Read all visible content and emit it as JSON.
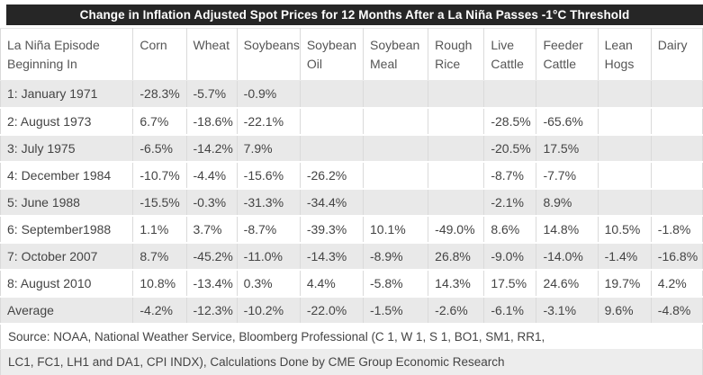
{
  "chart_data": {
    "type": "table",
    "title": "Change in Inflation Adjusted Spot Prices for 12 Months After a La Niña Passes -1°C Threshold",
    "columns": [
      "La Niña Episode Beginning In",
      "Corn",
      "Wheat",
      "Soybeans",
      "Soybean Oil",
      "Soybean Meal",
      "Rough Rice",
      "Live Cattle",
      "Feeder Cattle",
      "Lean Hogs",
      "Dairy"
    ],
    "rows": [
      {
        "label": "1: January 1971",
        "values": [
          "-28.3%",
          "-5.7%",
          "-0.9%",
          "",
          "",
          "",
          "",
          "",
          "",
          ""
        ]
      },
      {
        "label": "2: August 1973",
        "values": [
          "6.7%",
          "-18.6%",
          "-22.1%",
          "",
          "",
          "",
          "-28.5%",
          "-65.6%",
          "",
          ""
        ]
      },
      {
        "label": "3: July 1975",
        "values": [
          "-6.5%",
          "-14.2%",
          "7.9%",
          "",
          "",
          "",
          "-20.5%",
          "17.5%",
          "",
          ""
        ]
      },
      {
        "label": "4: December 1984",
        "values": [
          "-10.7%",
          "-4.4%",
          "-15.6%",
          "-26.2%",
          "",
          "",
          "-8.7%",
          "-7.7%",
          "",
          ""
        ]
      },
      {
        "label": "5: June 1988",
        "values": [
          "-15.5%",
          "-0.3%",
          "-31.3%",
          "-34.4%",
          "",
          "",
          "-2.1%",
          "8.9%",
          "",
          ""
        ]
      },
      {
        "label": "6: September1988",
        "values": [
          "1.1%",
          "3.7%",
          "-8.7%",
          "-39.3%",
          "10.1%",
          "-49.0%",
          "8.6%",
          "14.8%",
          "10.5%",
          "-1.8%"
        ]
      },
      {
        "label": "7: October 2007",
        "values": [
          "8.7%",
          "-45.2%",
          "-11.0%",
          "-14.3%",
          "-8.9%",
          "26.8%",
          "-9.0%",
          "-14.0%",
          "-1.4%",
          "-16.8%"
        ]
      },
      {
        "label": "8: August 2010",
        "values": [
          "10.8%",
          "-13.4%",
          "0.3%",
          "4.4%",
          "-5.8%",
          "14.3%",
          "17.5%",
          "24.6%",
          "19.7%",
          "4.2%"
        ]
      },
      {
        "label": "Average",
        "values": [
          "-4.2%",
          "-12.3%",
          "-10.2%",
          "-22.0%",
          "-1.5%",
          "-2.6%",
          "-6.1%",
          "-3.1%",
          "9.6%",
          "-4.8%"
        ]
      }
    ],
    "source_lines": [
      "Source: NOAA, National Weather Service, Bloomberg Professional (C 1, W 1, S 1, BO1, SM1, RR1,",
      "LC1, FC1, LH1 and DA1, CPI INDX), Calculations Done by CME Group Economic Research"
    ],
    "layout_hints": {
      "legend": "none",
      "grid": "alternating-row-stripes",
      "header_rows": 1,
      "summary_row": "Average"
    }
  },
  "colors": {
    "title_bar_bg": "#262626",
    "title_text": "#ffffff",
    "header_text": "#555555",
    "cell_text": "#444444",
    "row_stripe": "#e9e9e9",
    "border": "#dadada",
    "source_row_alt_bg": "#ededed"
  }
}
